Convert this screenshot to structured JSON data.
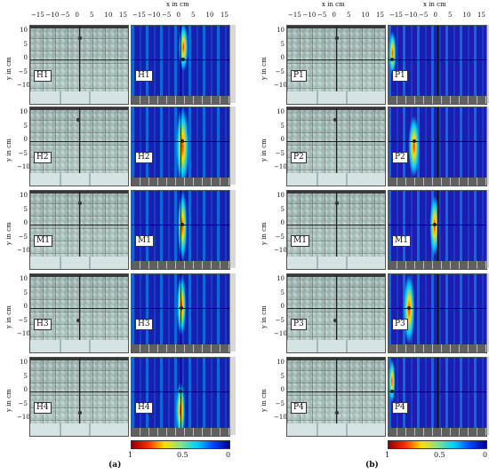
{
  "axes": {
    "x_title": "x in cm",
    "y_title": "y in cm",
    "x_ticks": [
      "−15",
      "−10",
      "−5",
      "0",
      "5",
      "10",
      "15"
    ],
    "y_ticks": [
      "10",
      "5",
      "0",
      "−5",
      "−10"
    ]
  },
  "figure_a": {
    "sublabel": "(a)",
    "rows": [
      "H1",
      "H2",
      "M1",
      "H3",
      "H4"
    ]
  },
  "figure_b": {
    "sublabel": "(b)",
    "rows": [
      "P1",
      "P2",
      "M1",
      "P3",
      "P4"
    ]
  },
  "colorbar": {
    "ticks": [
      "1",
      "0.5",
      "0"
    ]
  },
  "colors": {
    "heat_low": "#1a1fb0",
    "heat_mid": "#00d0ff",
    "heat_high": "#ff2a00",
    "photo_bg": "#9fb7b3"
  }
}
